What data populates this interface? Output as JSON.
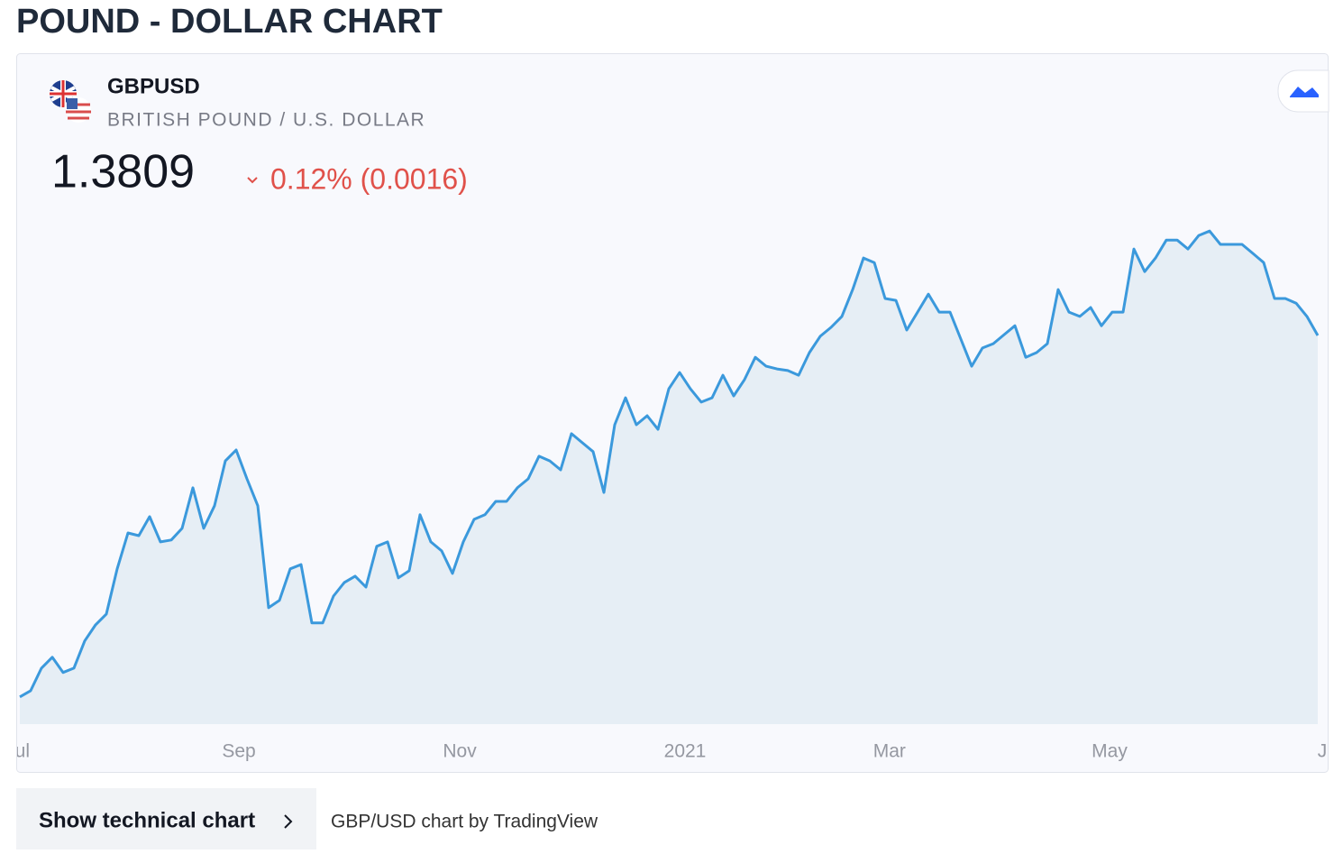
{
  "page_title": "POUND - DOLLAR CHART",
  "widget": {
    "symbol": "GBPUSD",
    "description": "BRITISH POUND / U.S. DOLLAR",
    "price": "1.3809",
    "change": "0.12% (0.0016)"
  },
  "chart_data": {
    "type": "line",
    "color": "#3b99dc",
    "area_color": "#e6eef5",
    "values": [
      1.248,
      1.2503,
      1.2586,
      1.2626,
      1.257,
      1.2586,
      1.2686,
      1.2745,
      1.2785,
      1.2951,
      1.3083,
      1.3073,
      1.3143,
      1.305,
      1.3057,
      1.31,
      1.3249,
      1.31,
      1.3183,
      1.3348,
      1.3388,
      1.3282,
      1.3183,
      1.2808,
      1.2835,
      1.2951,
      1.2967,
      1.2752,
      1.2752,
      1.2851,
      1.2901,
      1.2924,
      1.2884,
      1.3034,
      1.305,
      1.2918,
      1.2944,
      1.315,
      1.305,
      1.3017,
      1.2934,
      1.305,
      1.3133,
      1.315,
      1.3199,
      1.3199,
      1.3249,
      1.3282,
      1.3365,
      1.3348,
      1.3315,
      1.3448,
      1.3415,
      1.3382,
      1.3232,
      1.3481,
      1.358,
      1.3481,
      1.3514,
      1.3464,
      1.3613,
      1.3673,
      1.3613,
      1.3564,
      1.358,
      1.3663,
      1.3587,
      1.3647,
      1.3729,
      1.3696,
      1.3686,
      1.368,
      1.3663,
      1.3746,
      1.3806,
      1.3839,
      1.3879,
      1.3978,
      1.4094,
      1.4077,
      1.3945,
      1.3938,
      1.3829,
      1.3895,
      1.3961,
      1.3895,
      1.3895,
      1.3796,
      1.3696,
      1.3763,
      1.3779,
      1.3812,
      1.3845,
      1.3729,
      1.3746,
      1.3779,
      1.3978,
      1.3895,
      1.3879,
      1.3912,
      1.3845,
      1.3895,
      1.3895,
      1.4127,
      1.4044,
      1.4094,
      1.416,
      1.416,
      1.4127,
      1.4177,
      1.4193,
      1.4144,
      1.4144,
      1.4144,
      1.4111,
      1.4077,
      1.3945,
      1.3945,
      1.3928,
      1.3879,
      1.3809
    ],
    "ylim": [
      1.238,
      1.428
    ],
    "xlim": [
      0,
      120
    ],
    "xticks": [
      {
        "value": -0.2,
        "label": "Jul"
      },
      {
        "value": 20.25,
        "label": "Sep"
      },
      {
        "value": 40.67,
        "label": "Nov"
      },
      {
        "value": 61.5,
        "label": "2021"
      },
      {
        "value": 80.4,
        "label": "Mar"
      },
      {
        "value": 100.75,
        "label": "May"
      },
      {
        "value": 121.1,
        "label": "Jul"
      }
    ]
  },
  "footer": {
    "button": "Show technical chart",
    "credit": "GBP/USD chart by TradingView"
  }
}
